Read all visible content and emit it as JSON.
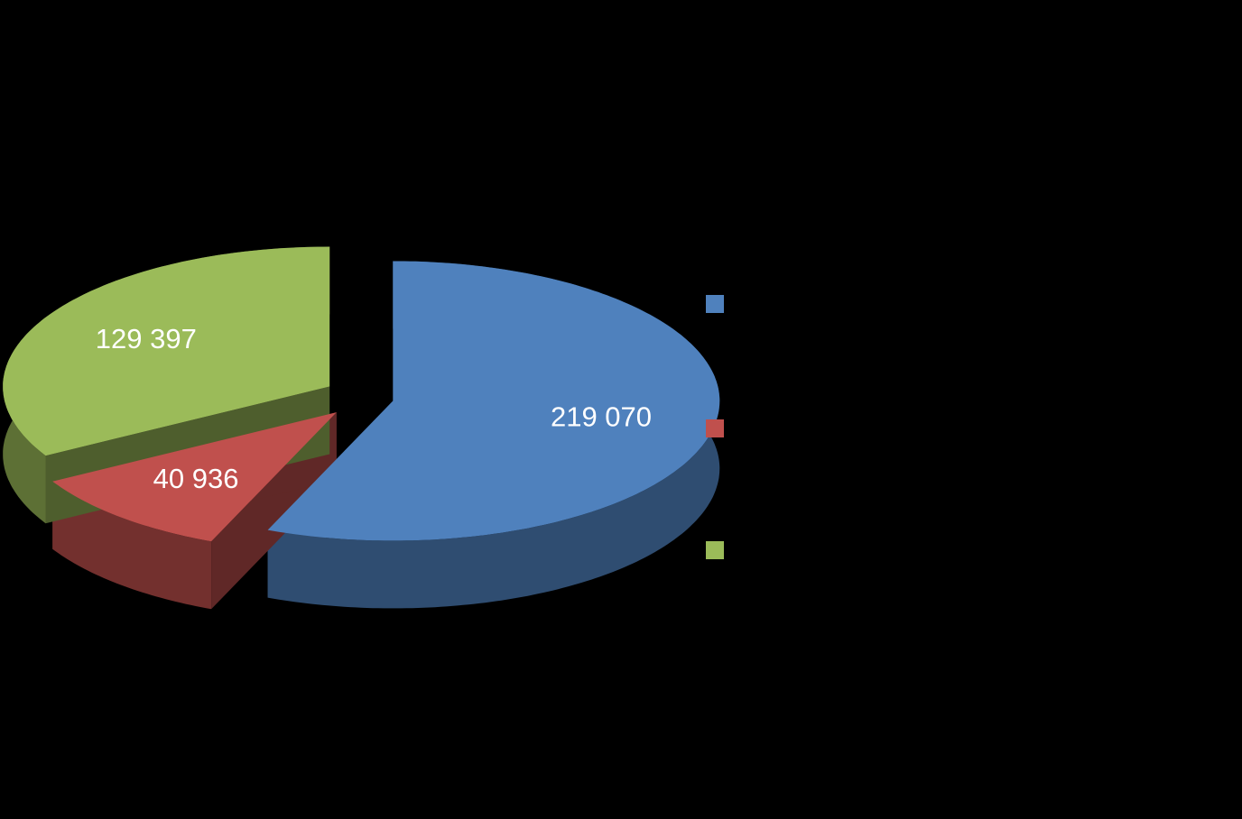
{
  "chart_data": {
    "type": "pie3d",
    "categories": [
      null,
      null,
      null
    ],
    "values": [
      219070,
      40936,
      129397
    ],
    "value_labels": [
      "219 070",
      "40 936",
      "129 397"
    ],
    "colors": [
      "#4f81bd",
      "#c0504d",
      "#9bbb59"
    ]
  }
}
